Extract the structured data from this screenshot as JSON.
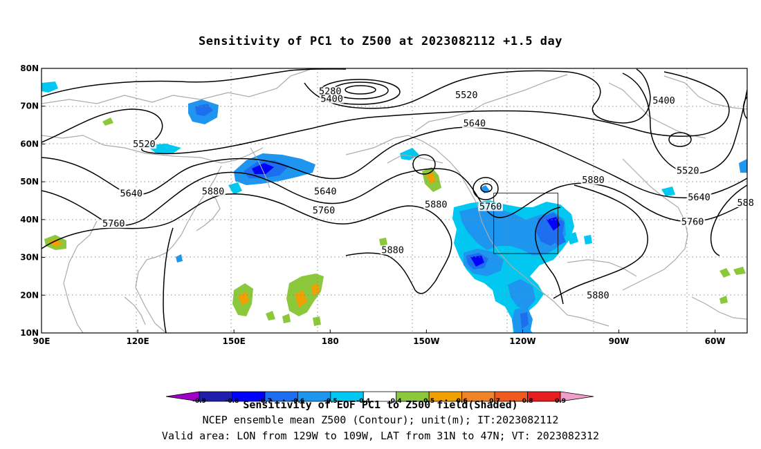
{
  "title": "Sensitivity of PC1 to Z500 at 2023082112 +1.5 day",
  "map": {
    "lon_range": [
      "90E",
      "50W"
    ],
    "lat_range": [
      "10N",
      "80N"
    ],
    "lon_ticks": [
      "90E",
      "120E",
      "150E",
      "180",
      "150W",
      "120W",
      "90W",
      "60W"
    ],
    "lat_ticks": [
      "10N",
      "20N",
      "30N",
      "40N",
      "50N",
      "60N",
      "70N",
      "80N"
    ],
    "grid": "dotted",
    "coastline_color": "#aaaaaa",
    "contour_labels": [
      {
        "text": "5280",
        "lon": 180,
        "lat": 73.5
      },
      {
        "text": "5400",
        "lon": 180.5,
        "lat": 71.5
      },
      {
        "text": "5520",
        "lon": 222.5,
        "lat": 72.5
      },
      {
        "text": "5640",
        "lon": 225,
        "lat": 65
      },
      {
        "text": "5400",
        "lon": 284,
        "lat": 71
      },
      {
        "text": "5520",
        "lon": 122,
        "lat": 59.5
      },
      {
        "text": "5520",
        "lon": 291.5,
        "lat": 52.5
      },
      {
        "text": "5640",
        "lon": 118,
        "lat": 46.5
      },
      {
        "text": "5880",
        "lon": 143.5,
        "lat": 47
      },
      {
        "text": "5640",
        "lon": 178.5,
        "lat": 47
      },
      {
        "text": "5760",
        "lon": 178,
        "lat": 42
      },
      {
        "text": "5880",
        "lon": 213,
        "lat": 43.5
      },
      {
        "text": "5760",
        "lon": 230,
        "lat": 43
      },
      {
        "text": "5880",
        "lon": 262,
        "lat": 50
      },
      {
        "text": "5640",
        "lon": 295,
        "lat": 45.5
      },
      {
        "text": "588",
        "lon": 309.5,
        "lat": 44
      },
      {
        "text": "5760",
        "lon": 112.5,
        "lat": 38.5
      },
      {
        "text": "5760",
        "lon": 293,
        "lat": 39
      },
      {
        "text": "5880",
        "lon": 199.5,
        "lat": 31.5
      },
      {
        "text": "5880",
        "lon": 263.5,
        "lat": 19.5
      }
    ],
    "valid_box": {
      "lon_min": 231,
      "lon_max": 251,
      "lat_min": 31,
      "lat_max": 47
    }
  },
  "colorbar": {
    "colors": [
      "#a000c8",
      "#1e1eaa",
      "#0000ff",
      "#1e6ef0",
      "#1e96f0",
      "#00c8f0",
      "#ffffff",
      "#8cc83c",
      "#f0a000",
      "#f08228",
      "#f05a1e",
      "#e61e1e",
      "#f0a0c8"
    ],
    "labels": [
      "-0.9",
      "-0.8",
      "-0.7",
      "-0.6",
      "-0.5",
      "-0.4",
      "0.4",
      "0.5",
      "0.6",
      "0.7",
      "0.8",
      "0.9"
    ]
  },
  "captions": {
    "line1": "Sensitivity of EOF PC1 to Z500 field(Shaded)",
    "line2": "NCEP ensemble mean Z500 (Contour); unit(m); IT:2023082112",
    "line3": "Valid area: LON from 129W to 109W, LAT from 31N to 47N; VT: 2023082312"
  }
}
